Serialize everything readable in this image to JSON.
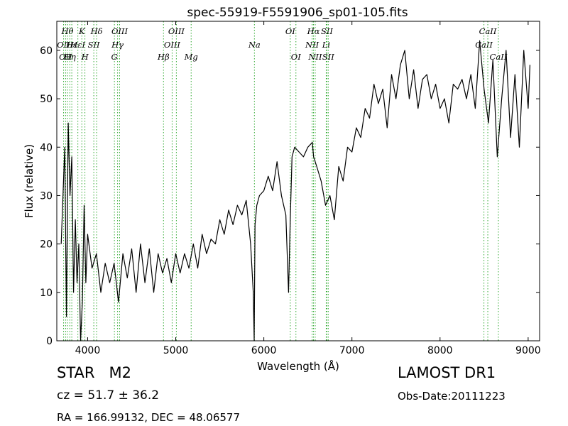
{
  "chart_data": {
    "type": "line",
    "title": "spec-55919-F5591906_sp01-105.fits",
    "xlabel": "Wavelength (Å)",
    "ylabel": "Flux (relative)",
    "xlim": [
      3650,
      9130
    ],
    "ylim": [
      0,
      66
    ],
    "xticks": [
      4000,
      5000,
      6000,
      7000,
      8000,
      9000
    ],
    "yticks": [
      0,
      10,
      20,
      30,
      40,
      50,
      60
    ],
    "grid": false,
    "legend": "none",
    "line_color": "#000000",
    "marker_line_color": "#33aa33",
    "series": [
      {
        "x": [
          3700,
          3740,
          3760,
          3780,
          3800,
          3820,
          3840,
          3860,
          3880,
          3900,
          3920,
          3940,
          3960,
          3980,
          4000,
          4050,
          4100,
          4150,
          4200,
          4250,
          4300,
          4350,
          4400,
          4450,
          4500,
          4550,
          4600,
          4650,
          4700,
          4750,
          4800,
          4850,
          4900,
          4950,
          5000,
          5050,
          5100,
          5150,
          5200,
          5250,
          5300,
          5350,
          5400,
          5450,
          5500,
          5550,
          5600,
          5650,
          5700,
          5750,
          5800,
          5850,
          5880,
          5890,
          5900,
          5920,
          5950,
          6000,
          6050,
          6100,
          6150,
          6200,
          6250,
          6280,
          6300,
          6320,
          6350,
          6400,
          6450,
          6500,
          6550,
          6565,
          6600,
          6650,
          6700,
          6750,
          6800,
          6850,
          6900,
          6950,
          7000,
          7050,
          7100,
          7150,
          7200,
          7250,
          7300,
          7350,
          7400,
          7450,
          7500,
          7550,
          7600,
          7650,
          7700,
          7750,
          7800,
          7850,
          7900,
          7950,
          8000,
          8050,
          8100,
          8150,
          8200,
          8250,
          8300,
          8350,
          8400,
          8450,
          8500,
          8550,
          8600,
          8650,
          8700,
          8750,
          8800,
          8850,
          8900,
          8950,
          9000,
          9020
        ],
        "y": [
          20,
          40,
          5,
          45,
          30,
          38,
          10,
          25,
          12,
          20,
          0,
          8,
          28,
          12,
          22,
          15,
          18,
          10,
          16,
          12,
          16,
          8,
          18,
          13,
          19,
          10,
          20,
          12,
          19,
          10,
          18,
          14,
          17,
          12,
          18,
          14,
          18,
          15,
          20,
          15,
          22,
          18,
          21,
          20,
          25,
          22,
          27,
          24,
          28,
          26,
          29,
          20,
          10,
          0,
          24,
          28,
          30,
          31,
          34,
          31,
          37,
          30,
          26,
          10,
          25,
          38,
          40,
          39,
          38,
          40,
          41,
          38,
          36,
          33,
          28,
          30,
          25,
          36,
          33,
          40,
          39,
          44,
          42,
          48,
          46,
          53,
          49,
          52,
          44,
          55,
          50,
          57,
          60,
          50,
          56,
          48,
          54,
          55,
          50,
          53,
          48,
          50,
          45,
          53,
          52,
          54,
          50,
          55,
          48,
          62,
          52,
          45,
          58,
          38,
          50,
          60,
          42,
          55,
          40,
          60,
          48,
          57
        ]
      }
    ],
    "line_markers": [
      {
        "wl": 3727,
        "label": "OII",
        "row": 1
      },
      {
        "wl": 3750,
        "label": "OII",
        "row": 2
      },
      {
        "wl": 3771,
        "label": "Hθ",
        "row": 0
      },
      {
        "wl": 3798,
        "label": "Hη",
        "row": 2
      },
      {
        "wl": 3820,
        "label": "Hε",
        "row": 1
      },
      {
        "wl": 3889,
        "label": "HεI",
        "row": 1
      },
      {
        "wl": 3934,
        "label": "K",
        "row": 0
      },
      {
        "wl": 3969,
        "label": "H",
        "row": 2
      },
      {
        "wl": 4070,
        "label": "SII",
        "row": 1
      },
      {
        "wl": 4102,
        "label": "Hδ",
        "row": 0
      },
      {
        "wl": 4304,
        "label": "G",
        "row": 2
      },
      {
        "wl": 4340,
        "label": "Hγ",
        "row": 1
      },
      {
        "wl": 4363,
        "label": "OIII",
        "row": 0
      },
      {
        "wl": 4861,
        "label": "Hβ",
        "row": 2
      },
      {
        "wl": 4959,
        "label": "OIII",
        "row": 1
      },
      {
        "wl": 5007,
        "label": "OIII",
        "row": 0
      },
      {
        "wl": 5175,
        "label": "Mg",
        "row": 2
      },
      {
        "wl": 5893,
        "label": "Na",
        "row": 1
      },
      {
        "wl": 6300,
        "label": "OI",
        "row": 0
      },
      {
        "wl": 6364,
        "label": "OI",
        "row": 2
      },
      {
        "wl": 6548,
        "label": "NII",
        "row": 1
      },
      {
        "wl": 6563,
        "label": "Hα",
        "row": 0
      },
      {
        "wl": 6583,
        "label": "NII",
        "row": 2
      },
      {
        "wl": 6708,
        "label": "Li",
        "row": 1
      },
      {
        "wl": 6716,
        "label": "SII",
        "row": 0
      },
      {
        "wl": 6731,
        "label": "SII",
        "row": 2
      },
      {
        "wl": 8498,
        "label": "CaII",
        "row": 1
      },
      {
        "wl": 8542,
        "label": "CaII",
        "row": 0
      },
      {
        "wl": 8662,
        "label": "CaII",
        "row": 2
      }
    ]
  },
  "info": {
    "object_class": "STAR",
    "subclass": "M2",
    "redshift": "cz = 51.7 ± 36.2",
    "coords": "RA = 166.99132, DEC = 48.06577",
    "survey": "LAMOST DR1",
    "obs_date": "Obs-Date:20111223"
  }
}
